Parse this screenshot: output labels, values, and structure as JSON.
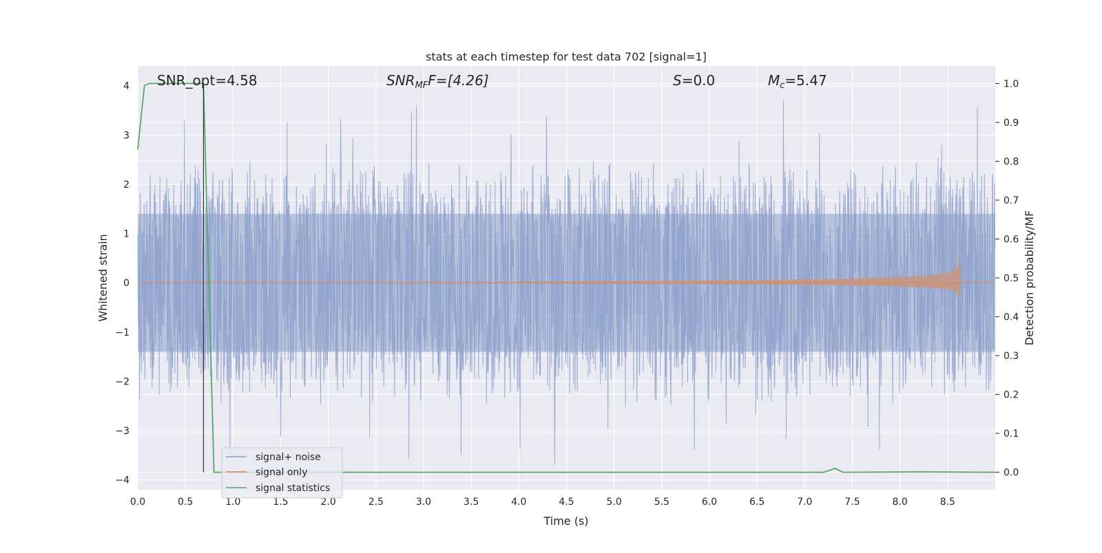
{
  "chart_data": {
    "type": "line",
    "title": "stats at each timestep for test data 702 [signal=1]",
    "xlabel": "Time (s)",
    "ylabel_left": "Whitened strain",
    "ylabel_right": "Detection probability/MF",
    "xlim": [
      0,
      9.0
    ],
    "ylim_left": [
      -4.2,
      4.4
    ],
    "ylim_right": [
      -0.045,
      1.045
    ],
    "x_ticks": [
      "0.0",
      "0.5",
      "1.0",
      "1.5",
      "2.0",
      "2.5",
      "3.0",
      "3.5",
      "4.0",
      "4.5",
      "5.0",
      "5.5",
      "6.0",
      "6.5",
      "7.0",
      "7.5",
      "8.0",
      "8.5"
    ],
    "y_ticks_left": [
      "4",
      "3",
      "2",
      "1",
      "0",
      "−1",
      "−2",
      "−3",
      "−4"
    ],
    "y_ticks_right": [
      "1.0",
      "0.9",
      "0.8",
      "0.7",
      "0.6",
      "0.5",
      "0.4",
      "0.3",
      "0.2",
      "0.1",
      "0.0"
    ],
    "grid": true,
    "annotations": {
      "snr_opt": "SNR_opt=4.58",
      "snr_mf_main": "SNR",
      "snr_mf_sub": "MF",
      "snr_mf_rest": "F=[4.26]",
      "s_main": "S",
      "s_rest": "=0.0",
      "mc_main": "M",
      "mc_sub": "c",
      "mc_rest": "=5.47"
    },
    "marker_line_x": 0.69,
    "legend": {
      "position": "lower-left",
      "entries": [
        "signal+ noise",
        "signal only",
        "signal statistics"
      ]
    },
    "series": [
      {
        "name": "signal+ noise",
        "color": "#8da0cb",
        "description_envelope": {
          "typical_abs": 1.6,
          "peak_max": 4.0,
          "peak_min": -3.7
        }
      },
      {
        "name": "signal only",
        "color": "#dd8452",
        "envelope_x": [
          0.0,
          3.0,
          4.0,
          5.0,
          6.0,
          7.0,
          7.5,
          8.0,
          8.3,
          8.5,
          8.6,
          8.63,
          8.64,
          9.0
        ],
        "envelope_y": [
          0.0,
          0.01,
          0.02,
          0.03,
          0.05,
          0.07,
          0.09,
          0.12,
          0.15,
          0.2,
          0.3,
          0.55,
          0.0,
          0.0
        ]
      },
      {
        "name": "signal statistics",
        "color": "#55a868",
        "x": [
          0.0,
          0.07,
          0.12,
          0.68,
          0.69,
          0.8,
          0.85,
          7.2,
          7.32,
          7.4,
          8.2,
          9.0
        ],
        "y": [
          0.83,
          0.995,
          1.0,
          1.0,
          1.0,
          0.0,
          0.0,
          0.0,
          0.01,
          0.0,
          0.001,
          0.0
        ]
      }
    ]
  }
}
